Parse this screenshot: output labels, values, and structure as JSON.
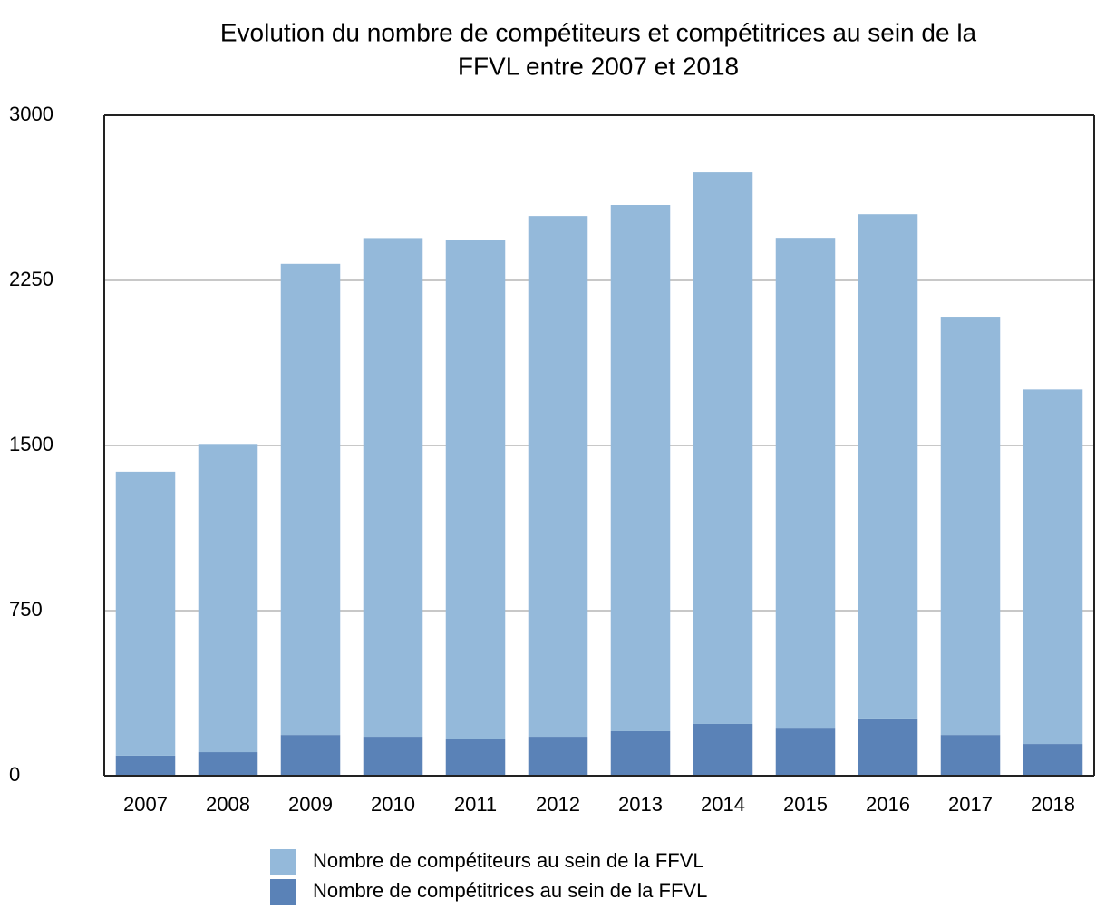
{
  "chart_data": {
    "type": "bar",
    "stacked": true,
    "title": [
      "Evolution du nombre de compétiteurs et compétitrices au sein de la",
      "FFVL entre 2007 et 2018"
    ],
    "categories": [
      "2007",
      "2008",
      "2009",
      "2010",
      "2011",
      "2012",
      "2013",
      "2014",
      "2015",
      "2016",
      "2017",
      "2018"
    ],
    "series": [
      {
        "name": "Nombre de compétiteurs au sein de la FFVL",
        "color": "#94b9da",
        "values": [
          1290,
          1400,
          2140,
          2265,
          2265,
          2365,
          2390,
          2505,
          2225,
          2290,
          1900,
          1610
        ]
      },
      {
        "name": "Nombre de compétitrices au sein de la FFVL",
        "color": "#5a82b7",
        "values": [
          91,
          107,
          185,
          177,
          169,
          177,
          202,
          235,
          218,
          260,
          185,
          144
        ]
      }
    ],
    "ylim": [
      0,
      3000
    ],
    "yticks": [
      0,
      750,
      1500,
      2250,
      3000
    ],
    "grid": true
  }
}
